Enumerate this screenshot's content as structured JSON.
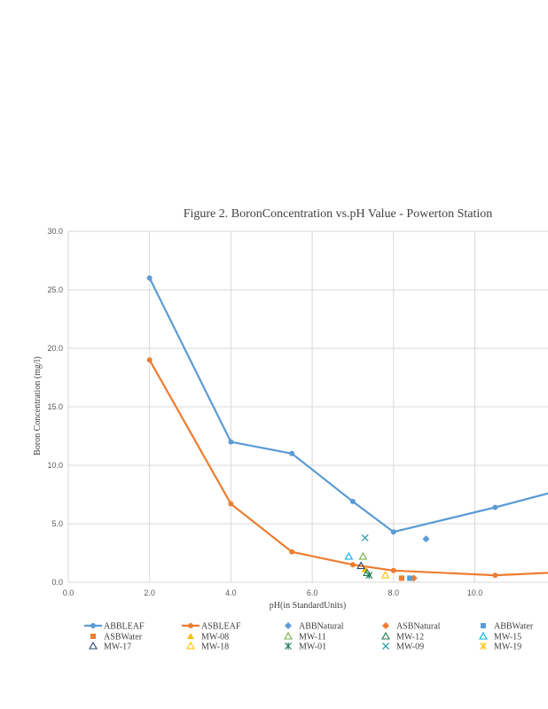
{
  "colors": {
    "blue": "#5B9BD5",
    "orange": "#ED7D31",
    "yellow": "#FFC000",
    "green": "#70AD47",
    "dark_green": "#1E7B55",
    "navy": "#264478",
    "cyan": "#00B0F0",
    "teal": "#2E9FAF",
    "grid": "#D9D9D9",
    "text": "#595959"
  },
  "chart_data": {
    "type": "scatter",
    "title": "Figure 2. BoronConcentration  vs.pH Value - Powerton Station",
    "xlabel": "pH(in StandardUnits)",
    "ylabel": "Boron Concentration  (mg/l)",
    "xlim": [
      0,
      11.8
    ],
    "ylim": [
      0,
      30
    ],
    "x_ticks": [
      "0.0",
      "2.0",
      "4.0",
      "6.0",
      "8.0",
      "10.0"
    ],
    "y_ticks": [
      "0.0",
      "5.0",
      "10.0",
      "15.0",
      "20.0",
      "25.0",
      "30.0"
    ],
    "grid": true,
    "legend_position": "bottom",
    "series": [
      {
        "name": "ABBLEAF",
        "kind": "line",
        "marker": "circle",
        "color": "#5B9BD5",
        "points": [
          [
            2.0,
            26.0
          ],
          [
            4.0,
            12.0
          ],
          [
            5.5,
            11.0
          ],
          [
            7.0,
            6.9
          ],
          [
            8.0,
            4.3
          ],
          [
            10.5,
            6.4
          ],
          [
            11.8,
            7.6
          ]
        ]
      },
      {
        "name": "ASBLEAF",
        "kind": "line",
        "marker": "circle",
        "color": "#ED7D31",
        "points": [
          [
            2.0,
            19.0
          ],
          [
            4.0,
            6.7
          ],
          [
            5.5,
            2.6
          ],
          [
            7.0,
            1.5
          ],
          [
            8.0,
            1.0
          ],
          [
            10.5,
            0.6
          ],
          [
            11.8,
            0.8
          ]
        ]
      },
      {
        "name": "ABBNatural",
        "kind": "marker",
        "marker": "diamond",
        "color": "#5B9BD5",
        "points": [
          [
            8.8,
            3.7
          ]
        ]
      },
      {
        "name": "ASBNatural",
        "kind": "marker",
        "marker": "diamond",
        "color": "#ED7D31",
        "points": [
          [
            8.5,
            0.35
          ]
        ]
      },
      {
        "name": "ABBWater",
        "kind": "marker",
        "marker": "square",
        "color": "#5B9BD5",
        "points": [
          [
            8.4,
            0.35
          ]
        ]
      },
      {
        "name": "ASBWater",
        "kind": "marker",
        "marker": "square",
        "color": "#ED7D31",
        "points": [
          [
            8.2,
            0.35
          ]
        ]
      },
      {
        "name": "MW-08",
        "kind": "marker",
        "marker": "triangle-filled",
        "color": "#FFC000",
        "points": [
          [
            7.3,
            1.1
          ]
        ]
      },
      {
        "name": "MW-11",
        "kind": "marker",
        "marker": "triangle-open",
        "color": "#70AD47",
        "points": [
          [
            7.25,
            2.2
          ]
        ]
      },
      {
        "name": "MW-12",
        "kind": "marker",
        "marker": "triangle-open",
        "color": "#1E7B55",
        "points": [
          [
            7.35,
            0.8
          ]
        ]
      },
      {
        "name": "MW-15",
        "kind": "marker",
        "marker": "triangle-open",
        "color": "#00B0F0",
        "points": [
          [
            6.9,
            2.2
          ]
        ]
      },
      {
        "name": "MW-17",
        "kind": "marker",
        "marker": "triangle-open",
        "color": "#264478",
        "points": [
          [
            7.2,
            1.4
          ]
        ]
      },
      {
        "name": "MW-18",
        "kind": "marker",
        "marker": "triangle-open",
        "color": "#FFC000",
        "points": [
          [
            7.8,
            0.6
          ]
        ]
      },
      {
        "name": "MW-01",
        "kind": "marker",
        "marker": "star",
        "color": "#1E7B55",
        "points": [
          [
            7.4,
            0.6
          ]
        ]
      },
      {
        "name": "MW-09",
        "kind": "marker",
        "marker": "x",
        "color": "#2E9FAF",
        "points": [
          [
            7.3,
            3.8
          ]
        ]
      },
      {
        "name": "MW-19",
        "kind": "marker",
        "marker": "star",
        "color": "#FFC000",
        "points": []
      }
    ]
  }
}
